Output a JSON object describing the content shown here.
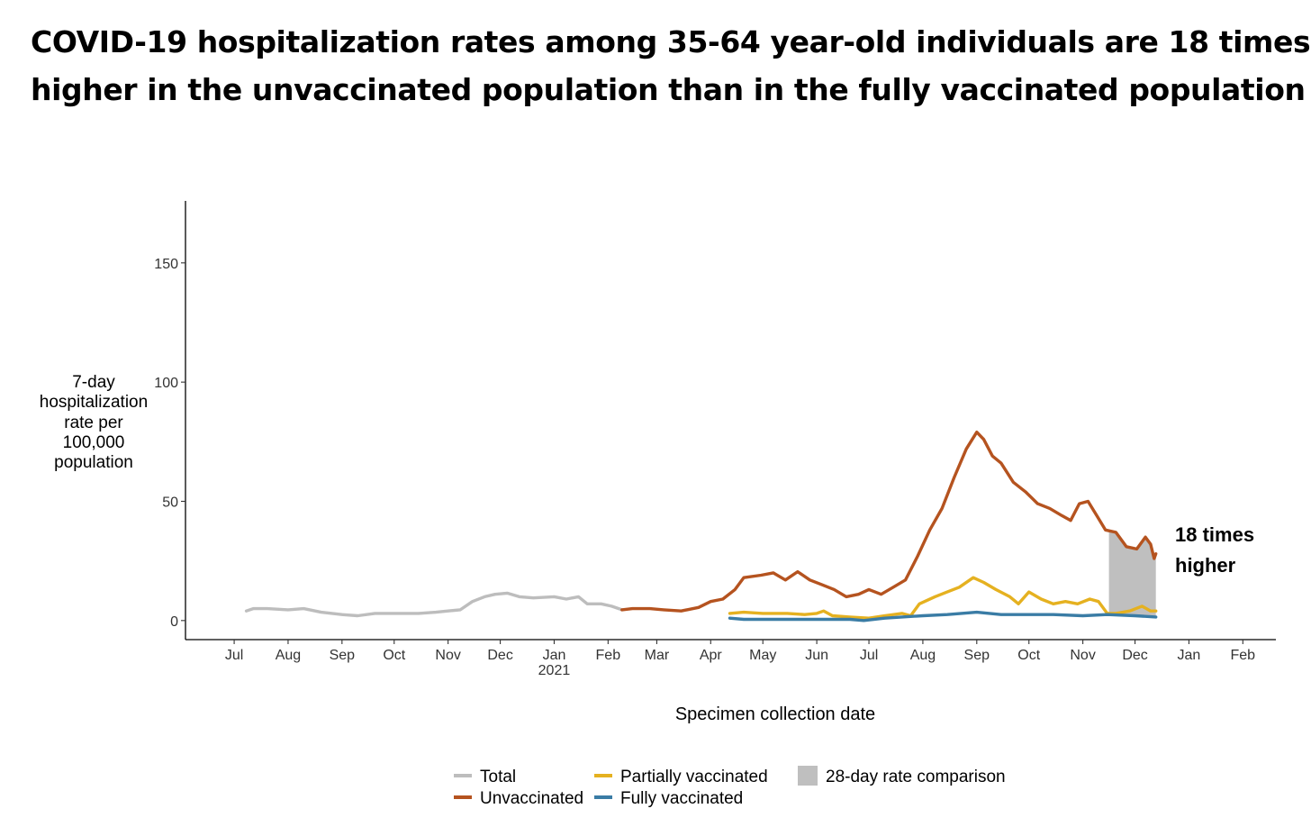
{
  "title_lines": [
    "COVID-19 hospitalization rates among 35-64 year-old individuals are 18 times",
    "higher in the unvaccinated population than in the fully vaccinated population"
  ],
  "chart_data": {
    "type": "line",
    "xlabel": "Specimen collection date",
    "ylabel_lines": [
      "7-day",
      "hospitalization",
      "rate per",
      "100,000",
      "population"
    ],
    "ylim": [
      -8,
      176
    ],
    "xlim": [
      "2020-06-03",
      "2022-02-20"
    ],
    "yticks": [
      0,
      50,
      100,
      150
    ],
    "xticks": [
      {
        "date": "2020-07-01",
        "label": "Jul",
        "sublabel": ""
      },
      {
        "date": "2020-08-01",
        "label": "Aug",
        "sublabel": ""
      },
      {
        "date": "2020-09-01",
        "label": "Sep",
        "sublabel": ""
      },
      {
        "date": "2020-10-01",
        "label": "Oct",
        "sublabel": ""
      },
      {
        "date": "2020-11-01",
        "label": "Nov",
        "sublabel": ""
      },
      {
        "date": "2020-12-01",
        "label": "Dec",
        "sublabel": ""
      },
      {
        "date": "2021-01-01",
        "label": "Jan",
        "sublabel": "2021"
      },
      {
        "date": "2021-02-01",
        "label": "Feb",
        "sublabel": ""
      },
      {
        "date": "2021-03-01",
        "label": "Mar",
        "sublabel": ""
      },
      {
        "date": "2021-04-01",
        "label": "Apr",
        "sublabel": ""
      },
      {
        "date": "2021-05-01",
        "label": "May",
        "sublabel": ""
      },
      {
        "date": "2021-06-01",
        "label": "Jun",
        "sublabel": ""
      },
      {
        "date": "2021-07-01",
        "label": "Jul",
        "sublabel": ""
      },
      {
        "date": "2021-08-01",
        "label": "Aug",
        "sublabel": ""
      },
      {
        "date": "2021-09-01",
        "label": "Sep",
        "sublabel": ""
      },
      {
        "date": "2021-10-01",
        "label": "Oct",
        "sublabel": ""
      },
      {
        "date": "2021-11-01",
        "label": "Nov",
        "sublabel": ""
      },
      {
        "date": "2021-12-01",
        "label": "Dec",
        "sublabel": ""
      },
      {
        "date": "2022-01-01",
        "label": "Jan",
        "sublabel": ""
      },
      {
        "date": "2022-02-01",
        "label": "Feb",
        "sublabel": ""
      }
    ],
    "shaded_region": {
      "label": "28-day rate comparison",
      "start": "2021-11-16",
      "end": "2021-12-13",
      "color": "#bfbfbf"
    },
    "annotation_lines": [
      "18 times",
      "higher"
    ],
    "series": [
      {
        "name": "Total",
        "color": "#bdbdbd",
        "points": [
          [
            "2020-07-08",
            4
          ],
          [
            "2020-07-12",
            5
          ],
          [
            "2020-07-20",
            5
          ],
          [
            "2020-08-01",
            4.5
          ],
          [
            "2020-08-10",
            5
          ],
          [
            "2020-08-20",
            3.5
          ],
          [
            "2020-09-01",
            2.5
          ],
          [
            "2020-09-10",
            2
          ],
          [
            "2020-09-20",
            3
          ],
          [
            "2020-10-01",
            3
          ],
          [
            "2020-10-15",
            3
          ],
          [
            "2020-10-25",
            3.5
          ],
          [
            "2020-11-01",
            4
          ],
          [
            "2020-11-08",
            4.5
          ],
          [
            "2020-11-15",
            8
          ],
          [
            "2020-11-22",
            10
          ],
          [
            "2020-11-28",
            11
          ],
          [
            "2020-12-05",
            11.5
          ],
          [
            "2020-12-12",
            10
          ],
          [
            "2020-12-20",
            9.5
          ],
          [
            "2021-01-01",
            10
          ],
          [
            "2021-01-08",
            9
          ],
          [
            "2021-01-15",
            10
          ],
          [
            "2021-01-20",
            7
          ],
          [
            "2021-01-28",
            7
          ],
          [
            "2021-02-03",
            6
          ],
          [
            "2021-02-09",
            4.5
          ]
        ]
      },
      {
        "name": "Unvaccinated",
        "color": "#b5531f",
        "points": [
          [
            "2021-02-09",
            4.5
          ],
          [
            "2021-02-15",
            5
          ],
          [
            "2021-02-25",
            5
          ],
          [
            "2021-03-05",
            4.5
          ],
          [
            "2021-03-15",
            4
          ],
          [
            "2021-03-25",
            5.5
          ],
          [
            "2021-04-01",
            8
          ],
          [
            "2021-04-08",
            9
          ],
          [
            "2021-04-15",
            13
          ],
          [
            "2021-04-20",
            18
          ],
          [
            "2021-04-30",
            19
          ],
          [
            "2021-05-07",
            20
          ],
          [
            "2021-05-14",
            17
          ],
          [
            "2021-05-21",
            20.5
          ],
          [
            "2021-05-28",
            17
          ],
          [
            "2021-06-04",
            15
          ],
          [
            "2021-06-11",
            13
          ],
          [
            "2021-06-18",
            10
          ],
          [
            "2021-06-25",
            11
          ],
          [
            "2021-07-01",
            13
          ],
          [
            "2021-07-08",
            11
          ],
          [
            "2021-07-15",
            14
          ],
          [
            "2021-07-22",
            17
          ],
          [
            "2021-07-29",
            27
          ],
          [
            "2021-08-05",
            38
          ],
          [
            "2021-08-12",
            47
          ],
          [
            "2021-08-19",
            60
          ],
          [
            "2021-08-26",
            72
          ],
          [
            "2021-09-01",
            79
          ],
          [
            "2021-09-05",
            76
          ],
          [
            "2021-09-10",
            69
          ],
          [
            "2021-09-15",
            66
          ],
          [
            "2021-09-22",
            58
          ],
          [
            "2021-09-29",
            54
          ],
          [
            "2021-10-06",
            49
          ],
          [
            "2021-10-13",
            47
          ],
          [
            "2021-10-20",
            44
          ],
          [
            "2021-10-25",
            42
          ],
          [
            "2021-10-30",
            49
          ],
          [
            "2021-11-04",
            50
          ],
          [
            "2021-11-09",
            44
          ],
          [
            "2021-11-14",
            38
          ],
          [
            "2021-11-20",
            37
          ],
          [
            "2021-11-26",
            31
          ],
          [
            "2021-12-02",
            30
          ],
          [
            "2021-12-07",
            35
          ],
          [
            "2021-12-10",
            32
          ],
          [
            "2021-12-12",
            26
          ],
          [
            "2021-12-13",
            28
          ]
        ]
      },
      {
        "name": "Partially vaccinated",
        "color": "#e5b120",
        "points": [
          [
            "2021-04-12",
            3
          ],
          [
            "2021-04-20",
            3.5
          ],
          [
            "2021-05-01",
            3
          ],
          [
            "2021-05-15",
            3
          ],
          [
            "2021-05-25",
            2.5
          ],
          [
            "2021-06-01",
            3
          ],
          [
            "2021-06-05",
            4
          ],
          [
            "2021-06-10",
            2
          ],
          [
            "2021-06-20",
            1.5
          ],
          [
            "2021-07-01",
            1
          ],
          [
            "2021-07-10",
            2
          ],
          [
            "2021-07-20",
            3
          ],
          [
            "2021-07-25",
            2
          ],
          [
            "2021-07-30",
            7
          ],
          [
            "2021-08-08",
            10
          ],
          [
            "2021-08-15",
            12
          ],
          [
            "2021-08-22",
            14
          ],
          [
            "2021-08-30",
            18
          ],
          [
            "2021-09-05",
            16
          ],
          [
            "2021-09-12",
            13
          ],
          [
            "2021-09-20",
            10
          ],
          [
            "2021-09-25",
            7
          ],
          [
            "2021-10-01",
            12
          ],
          [
            "2021-10-08",
            9
          ],
          [
            "2021-10-15",
            7
          ],
          [
            "2021-10-22",
            8
          ],
          [
            "2021-10-29",
            7
          ],
          [
            "2021-11-05",
            9
          ],
          [
            "2021-11-10",
            8
          ],
          [
            "2021-11-15",
            3
          ],
          [
            "2021-11-20",
            3
          ],
          [
            "2021-11-28",
            4
          ],
          [
            "2021-12-05",
            6
          ],
          [
            "2021-12-10",
            4
          ],
          [
            "2021-12-13",
            4
          ]
        ]
      },
      {
        "name": "Fully vaccinated",
        "color": "#3a7ca5",
        "points": [
          [
            "2021-04-12",
            1
          ],
          [
            "2021-04-20",
            0.5
          ],
          [
            "2021-05-10",
            0.5
          ],
          [
            "2021-06-01",
            0.5
          ],
          [
            "2021-06-20",
            0.5
          ],
          [
            "2021-06-28",
            0
          ],
          [
            "2021-07-10",
            1
          ],
          [
            "2021-07-20",
            1.5
          ],
          [
            "2021-08-01",
            2
          ],
          [
            "2021-08-15",
            2.5
          ],
          [
            "2021-09-01",
            3.5
          ],
          [
            "2021-09-15",
            2.5
          ],
          [
            "2021-10-01",
            2.5
          ],
          [
            "2021-10-15",
            2.5
          ],
          [
            "2021-11-01",
            2
          ],
          [
            "2021-11-15",
            2.5
          ],
          [
            "2021-12-01",
            2
          ],
          [
            "2021-12-13",
            1.5
          ]
        ]
      }
    ],
    "legend": [
      {
        "label": "Total",
        "kind": "line",
        "color": "#bdbdbd"
      },
      {
        "label": "Unvaccinated",
        "kind": "line",
        "color": "#b5531f"
      },
      {
        "label": "Partially vaccinated",
        "kind": "line",
        "color": "#e5b120"
      },
      {
        "label": "Fully vaccinated",
        "kind": "line",
        "color": "#3a7ca5"
      },
      {
        "label": "28-day rate comparison",
        "kind": "box",
        "color": "#bfbfbf"
      }
    ],
    "legend_position": "bottom",
    "grid": false
  }
}
